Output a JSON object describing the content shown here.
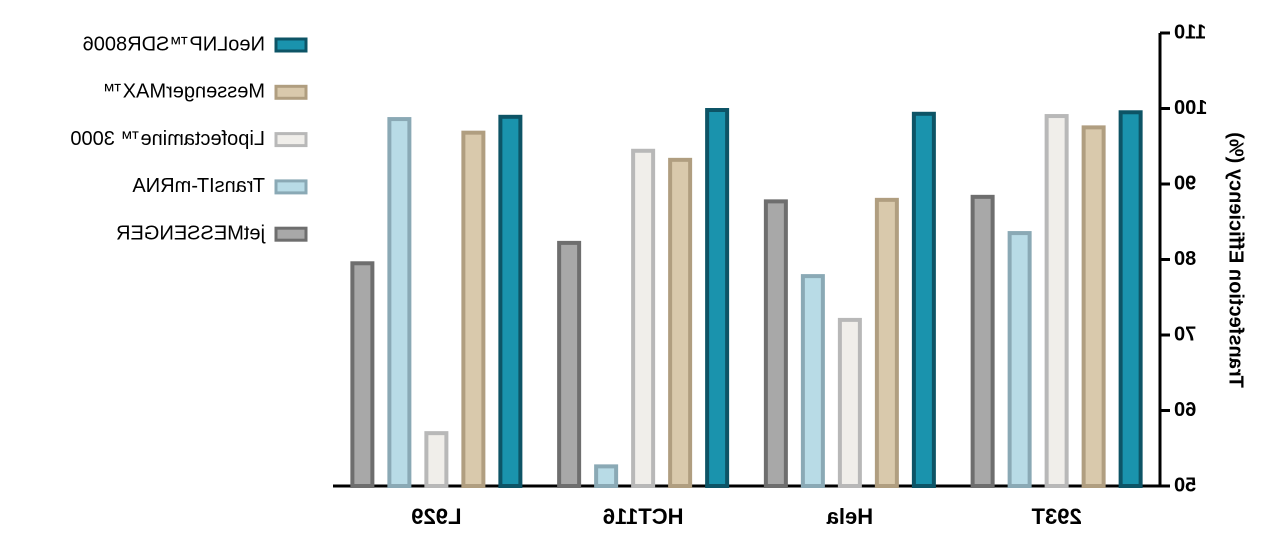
{
  "chart_data": {
    "type": "bar",
    "y_label": "Transfection Efficiency (%)",
    "categories": [
      "293T",
      "Hela",
      "HCT116",
      "L929"
    ],
    "series": [
      {
        "name": "NeoLNP™SDR8006",
        "color": "#1a93ad",
        "values": [
          99.5,
          99.3,
          99.8,
          98.9
        ]
      },
      {
        "name": "MessengerMAX™",
        "color": "#d9c9ac",
        "values": [
          97.5,
          87.9,
          93.2,
          96.8
        ]
      },
      {
        "name": "Lipofectamine™ 3000",
        "color": "#f0eeea",
        "values": [
          99.0,
          72.0,
          94.4,
          57.0
        ]
      },
      {
        "name": "TransIT-mRNA",
        "color": "#b8dbe6",
        "values": [
          83.5,
          77.8,
          52.6,
          98.6
        ]
      },
      {
        "name": "jetMESSENGER",
        "color": "#a8a8a8",
        "values": [
          88.3,
          87.7,
          82.2,
          79.5
        ]
      }
    ],
    "ylim": [
      50,
      110
    ],
    "yticks": [
      50,
      60,
      70,
      80,
      90,
      100,
      110
    ]
  }
}
